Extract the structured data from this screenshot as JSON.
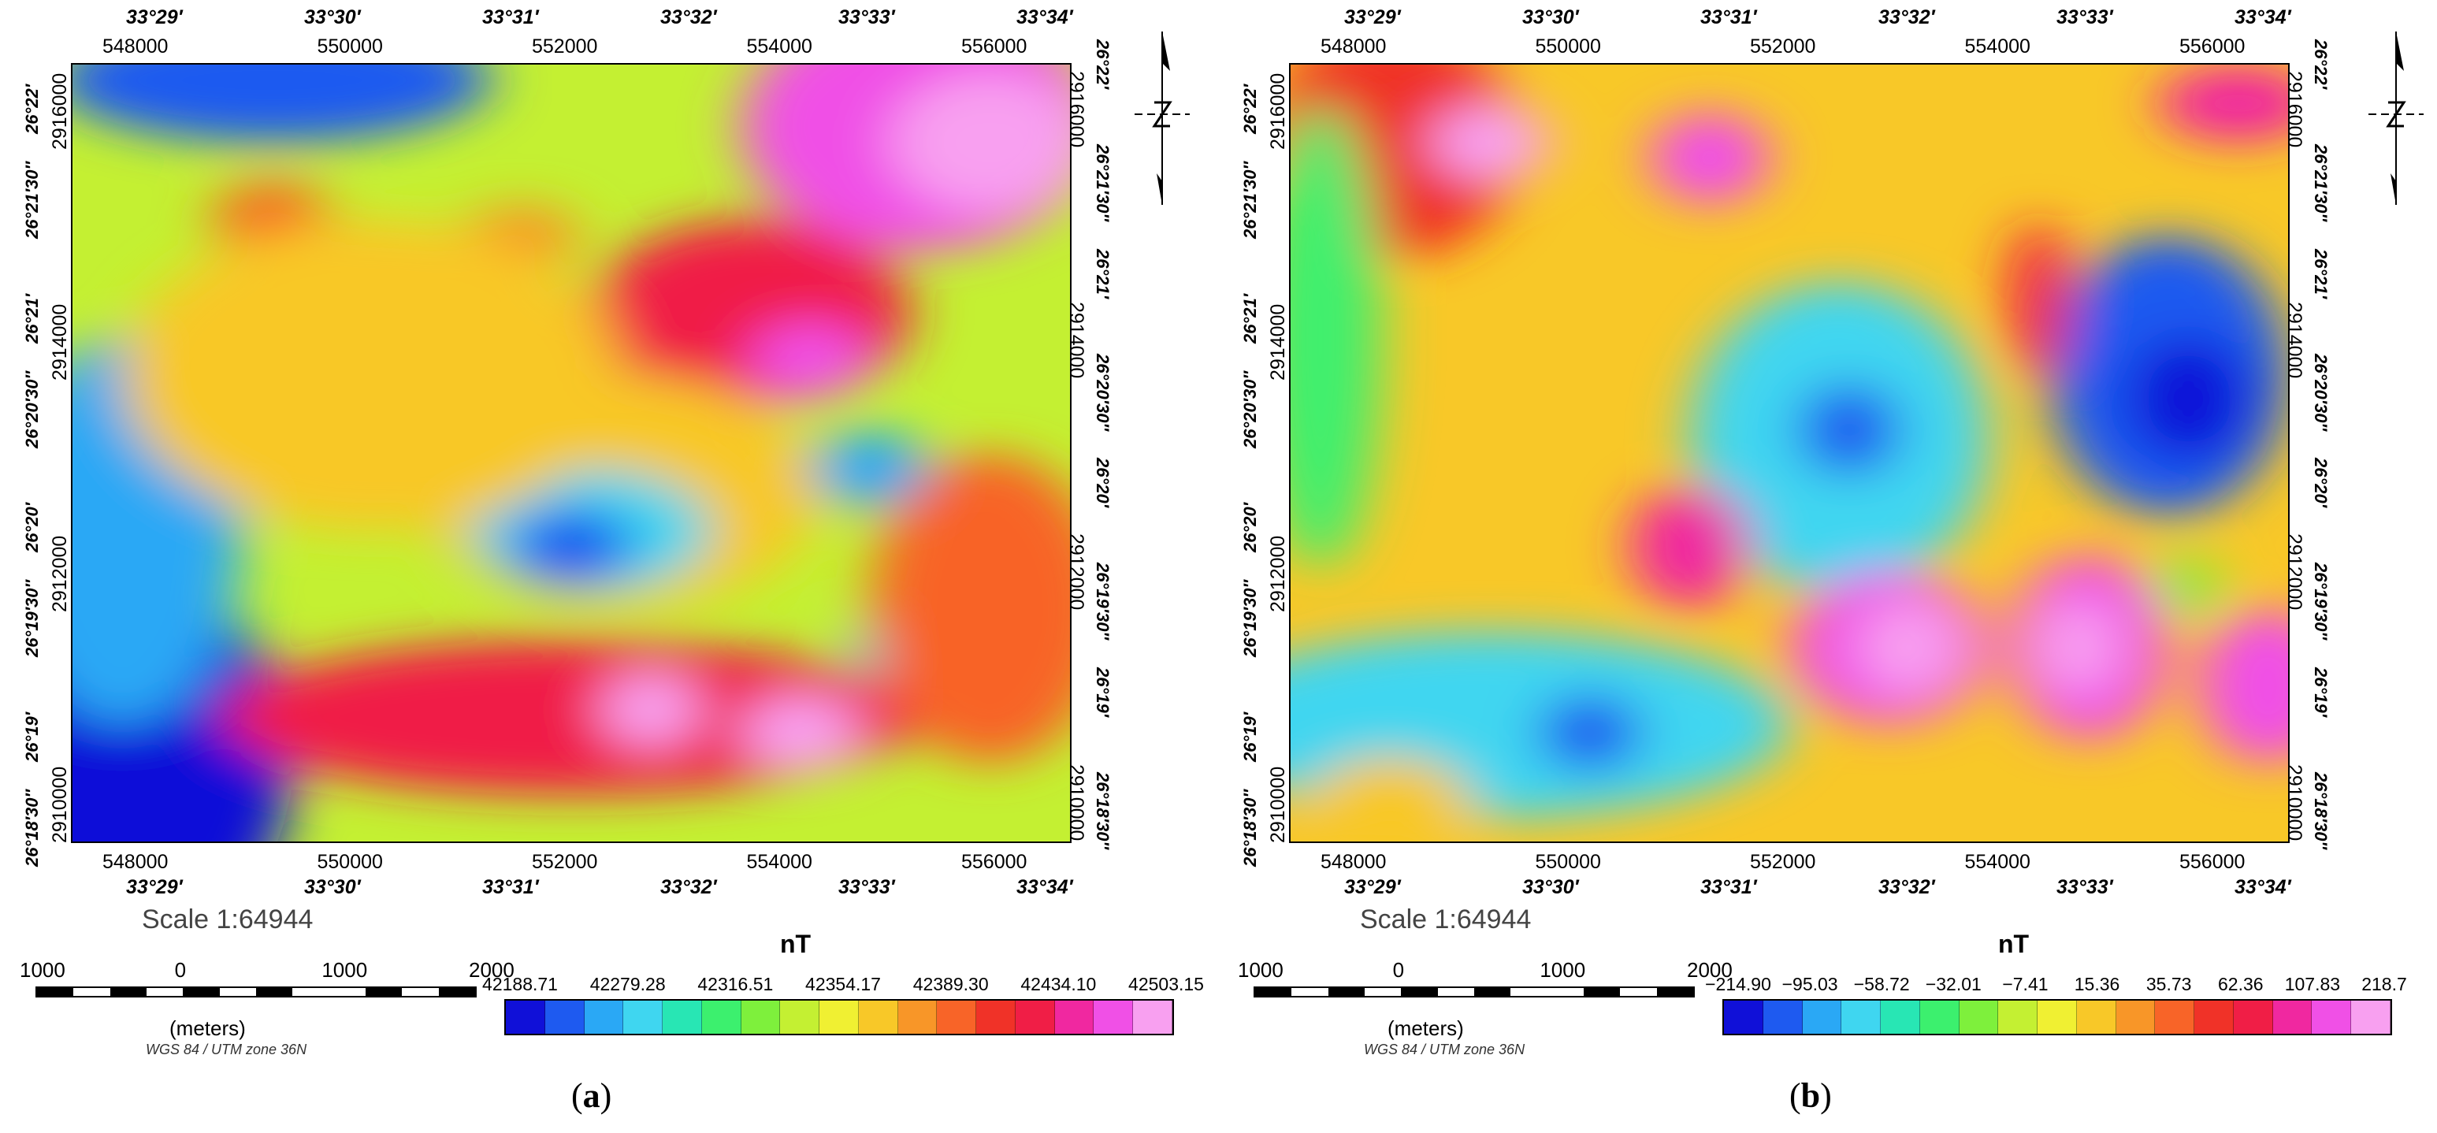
{
  "colors": {
    "ramp": [
      "#1010d8",
      "#1e5af0",
      "#2aa8f5",
      "#3fd6f0",
      "#28e6b4",
      "#3cf06e",
      "#7ef03c",
      "#c4f032",
      "#f0f032",
      "#f8c828",
      "#f89628",
      "#f86428",
      "#f03228",
      "#f01e46",
      "#f028a0",
      "#f050e6",
      "#f8a0f0"
    ],
    "frame": "#000000"
  },
  "panels": [
    {
      "caption_label": "a",
      "utm_x_ticks": [
        "548000",
        "550000",
        "552000",
        "554000",
        "556000"
      ],
      "lon_top_ticks": [
        "33°29′",
        "33°30′",
        "33°31′",
        "33°32′",
        "33°33′",
        "33°34′"
      ],
      "lon_bottom_ticks": [
        "33°29′",
        "33°30′",
        "33°31′",
        "33°32′",
        "33°33′",
        "33°34′"
      ],
      "lat_ticks": [
        "26°22′",
        "26°21′30″",
        "26°21′",
        "26°20′30″",
        "26°20′",
        "26°19′30″",
        "26°19′",
        "26°18′30″"
      ],
      "utm_y_ticks": [
        "2916000",
        "2914000",
        "2912000",
        "2910000"
      ],
      "scale_text": "Scale 1:64944",
      "scalebar_labels": [
        "1000",
        "0",
        "1000",
        "2000"
      ],
      "units_label": "(meters)",
      "crs_label": "WGS 84 / UTM zone 36N",
      "legend_title": "nT",
      "legend_labels": [
        "42188.71",
        "42279.28",
        "42316.51",
        "42354.17",
        "42389.30",
        "42434.10",
        "42503.15"
      ],
      "has_north_arrow": false
    },
    {
      "caption_label": "b",
      "utm_x_ticks": [
        "548000",
        "550000",
        "552000",
        "554000",
        "556000"
      ],
      "lon_top_ticks": [
        "33°29′",
        "33°30′",
        "33°31′",
        "33°32′",
        "33°33′",
        "33°34′"
      ],
      "lon_bottom_ticks": [
        "33°29′",
        "33°30′",
        "33°31′",
        "33°32′",
        "33°33′",
        "33°34′"
      ],
      "lat_ticks": [
        "26°22′",
        "26°21′30″",
        "26°21′",
        "26°20′30″",
        "26°20′",
        "26°19′30″",
        "26°19′",
        "26°18′30″"
      ],
      "utm_y_ticks": [
        "2916000",
        "2914000",
        "2912000",
        "2910000"
      ],
      "scale_text": "Scale 1:64944",
      "scalebar_labels": [
        "1000",
        "0",
        "1000",
        "2000"
      ],
      "units_label": "(meters)",
      "crs_label": "WGS 84 / UTM zone 36N",
      "legend_title": "nT",
      "legend_labels": [
        "−214.90",
        "−95.03",
        "−58.72",
        "−32.01",
        "−7.41",
        "15.36",
        "35.73",
        "62.36",
        "107.83",
        "218.7"
      ],
      "has_north_arrow": true
    }
  ]
}
